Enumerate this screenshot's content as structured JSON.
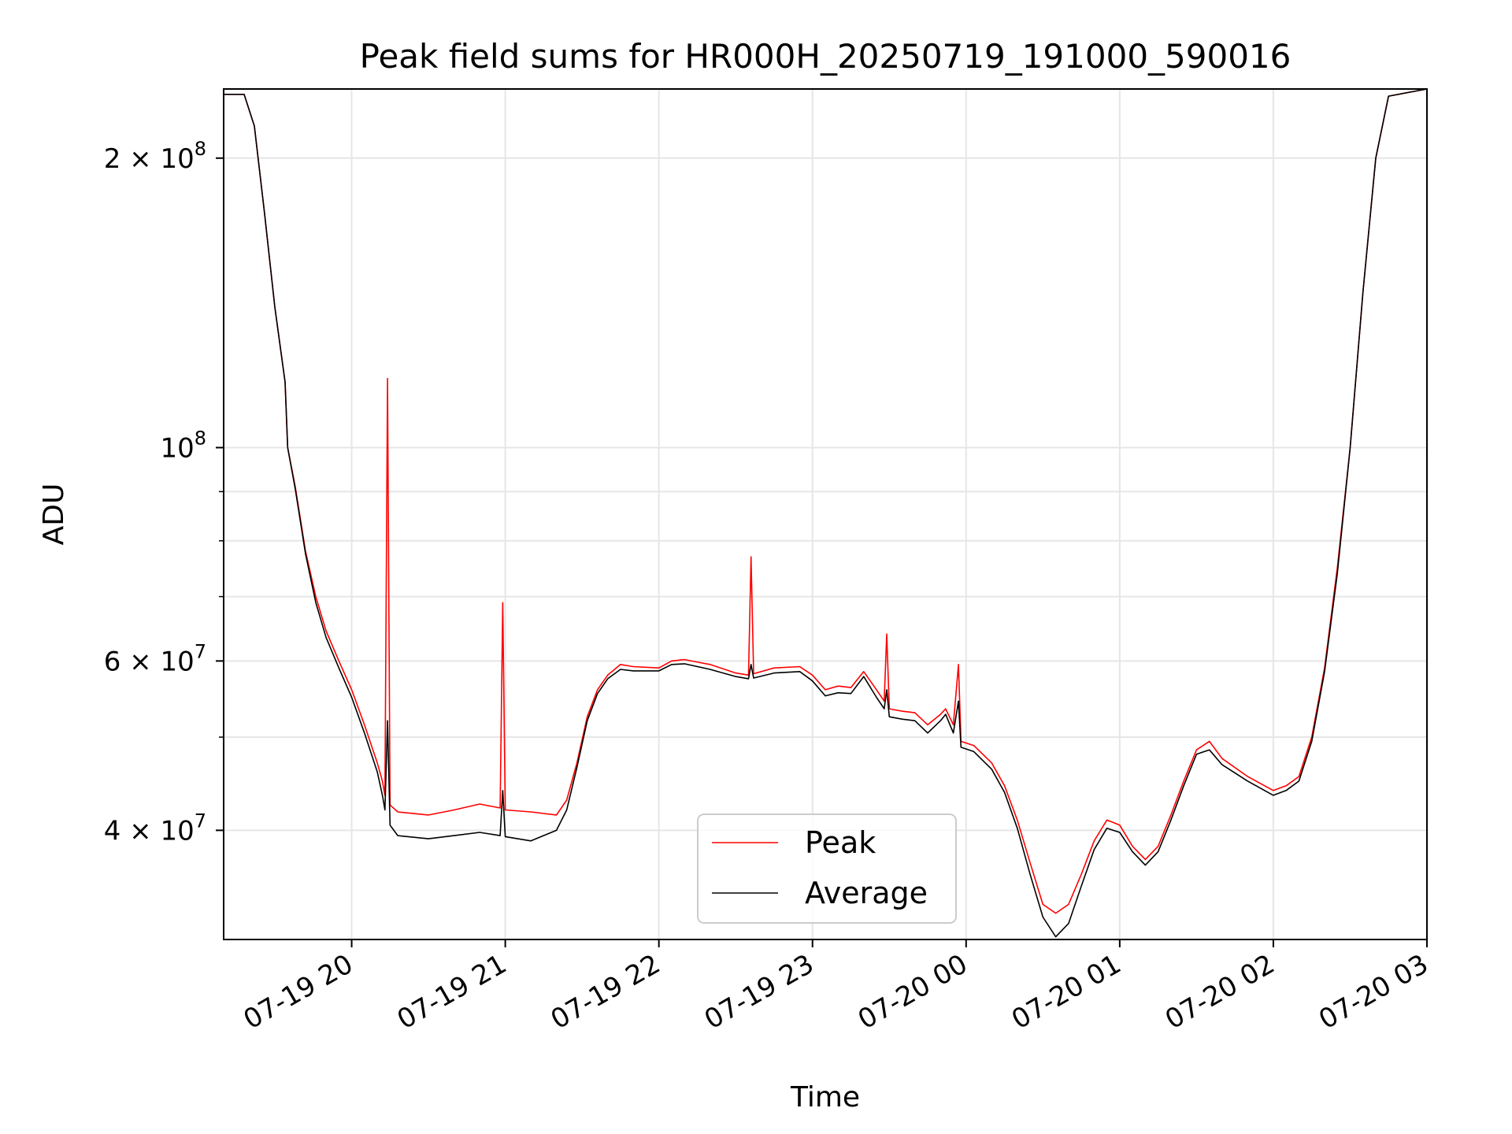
{
  "chart_data": {
    "type": "line",
    "title": "Peak field sums for HR000H_20250719_191000_590016",
    "xlabel": "Time",
    "ylabel": "ADU",
    "yscale": "log",
    "grid": true,
    "legend_position": "lower center",
    "x_range": [
      "2025-07-19 19:10",
      "2025-07-20 03:00"
    ],
    "y_range": [
      30800000,
      236000000
    ],
    "x_ticks": [
      {
        "t": "2025-07-19 20:00",
        "label": "07-19 20"
      },
      {
        "t": "2025-07-19 21:00",
        "label": "07-19 21"
      },
      {
        "t": "2025-07-19 22:00",
        "label": "07-19 22"
      },
      {
        "t": "2025-07-19 23:00",
        "label": "07-19 23"
      },
      {
        "t": "2025-07-20 00:00",
        "label": "07-20 00"
      },
      {
        "t": "2025-07-20 01:00",
        "label": "07-20 01"
      },
      {
        "t": "2025-07-20 02:00",
        "label": "07-20 02"
      },
      {
        "t": "2025-07-20 03:00",
        "label": "07-20 03"
      }
    ],
    "y_ticks": [
      {
        "v": 40000000,
        "mant": "4",
        "exp": "7",
        "sci": true
      },
      {
        "v": 60000000,
        "mant": "6",
        "exp": "7",
        "sci": true
      },
      {
        "v": 100000000,
        "mant": "10",
        "exp": "8",
        "sci": false
      },
      {
        "v": 200000000,
        "mant": "2",
        "exp": "8",
        "sci": true
      }
    ],
    "y_minor_ticks": [
      30000000,
      50000000,
      70000000,
      80000000,
      90000000
    ],
    "series": [
      {
        "name": "Peak",
        "color": "#ff0000",
        "points": [
          [
            "2025-07-19 19:10",
            233000000
          ],
          [
            "2025-07-19 19:18",
            233000000
          ],
          [
            "2025-07-19 19:22",
            216000000
          ],
          [
            "2025-07-19 19:26",
            175000000
          ],
          [
            "2025-07-19 19:30",
            140000000
          ],
          [
            "2025-07-19 19:34",
            117000000
          ],
          [
            "2025-07-19 19:35",
            100000000
          ],
          [
            "2025-07-19 19:38",
            91000000
          ],
          [
            "2025-07-19 19:42",
            78000000
          ],
          [
            "2025-07-19 19:46",
            70000000
          ],
          [
            "2025-07-19 19:50",
            64500000
          ],
          [
            "2025-07-19 19:55",
            60000000
          ],
          [
            "2025-07-19 20:00",
            56000000
          ],
          [
            "2025-07-19 20:05",
            51500000
          ],
          [
            "2025-07-19 20:10",
            47000000
          ],
          [
            "2025-07-19 20:12",
            45000000
          ],
          [
            "2025-07-19 20:13",
            43500000
          ],
          [
            "2025-07-19 20:14",
            118000000
          ],
          [
            "2025-07-19 20:15",
            42500000
          ],
          [
            "2025-07-19 20:18",
            41800000
          ],
          [
            "2025-07-19 20:30",
            41500000
          ],
          [
            "2025-07-19 20:40",
            42000000
          ],
          [
            "2025-07-19 20:50",
            42600000
          ],
          [
            "2025-07-19 20:58",
            42200000
          ],
          [
            "2025-07-19 20:59",
            69000000
          ],
          [
            "2025-07-19 21:00",
            42000000
          ],
          [
            "2025-07-19 21:10",
            41800000
          ],
          [
            "2025-07-19 21:20",
            41500000
          ],
          [
            "2025-07-19 21:24",
            43000000
          ],
          [
            "2025-07-19 21:28",
            47000000
          ],
          [
            "2025-07-19 21:32",
            52500000
          ],
          [
            "2025-07-19 21:36",
            56000000
          ],
          [
            "2025-07-19 21:40",
            58000000
          ],
          [
            "2025-07-19 21:45",
            59500000
          ],
          [
            "2025-07-19 21:50",
            59200000
          ],
          [
            "2025-07-19 22:00",
            59000000
          ],
          [
            "2025-07-19 22:05",
            60000000
          ],
          [
            "2025-07-19 22:10",
            60200000
          ],
          [
            "2025-07-19 22:20",
            59500000
          ],
          [
            "2025-07-19 22:30",
            58300000
          ],
          [
            "2025-07-19 22:35",
            58000000
          ],
          [
            "2025-07-19 22:36",
            77000000
          ],
          [
            "2025-07-19 22:37",
            58200000
          ],
          [
            "2025-07-19 22:45",
            59000000
          ],
          [
            "2025-07-19 22:55",
            59200000
          ],
          [
            "2025-07-19 23:00",
            58000000
          ],
          [
            "2025-07-19 23:05",
            56000000
          ],
          [
            "2025-07-19 23:10",
            56500000
          ],
          [
            "2025-07-19 23:15",
            56300000
          ],
          [
            "2025-07-19 23:20",
            58500000
          ],
          [
            "2025-07-19 23:25",
            56000000
          ],
          [
            "2025-07-19 23:28",
            54500000
          ],
          [
            "2025-07-19 23:29",
            64000000
          ],
          [
            "2025-07-19 23:30",
            53500000
          ],
          [
            "2025-07-19 23:35",
            53200000
          ],
          [
            "2025-07-19 23:40",
            53000000
          ],
          [
            "2025-07-19 23:45",
            51500000
          ],
          [
            "2025-07-19 23:50",
            52800000
          ],
          [
            "2025-07-19 23:52",
            53500000
          ],
          [
            "2025-07-19 23:55",
            51500000
          ],
          [
            "2025-07-19 23:57",
            59500000
          ],
          [
            "2025-07-19 23:58",
            49500000
          ],
          [
            "2025-07-20 00:03",
            49000000
          ],
          [
            "2025-07-20 00:10",
            47000000
          ],
          [
            "2025-07-20 00:15",
            44500000
          ],
          [
            "2025-07-20 00:20",
            41000000
          ],
          [
            "2025-07-20 00:25",
            37000000
          ],
          [
            "2025-07-20 00:30",
            33500000
          ],
          [
            "2025-07-20 00:35",
            32800000
          ],
          [
            "2025-07-20 00:40",
            33500000
          ],
          [
            "2025-07-20 00:45",
            36000000
          ],
          [
            "2025-07-20 00:50",
            39000000
          ],
          [
            "2025-07-20 00:55",
            41000000
          ],
          [
            "2025-07-20 01:00",
            40500000
          ],
          [
            "2025-07-20 01:05",
            38500000
          ],
          [
            "2025-07-20 01:10",
            37300000
          ],
          [
            "2025-07-20 01:15",
            38500000
          ],
          [
            "2025-07-20 01:20",
            41500000
          ],
          [
            "2025-07-20 01:25",
            45000000
          ],
          [
            "2025-07-20 01:30",
            48500000
          ],
          [
            "2025-07-20 01:35",
            49500000
          ],
          [
            "2025-07-20 01:40",
            47500000
          ],
          [
            "2025-07-20 01:50",
            45500000
          ],
          [
            "2025-07-20 02:00",
            44000000
          ],
          [
            "2025-07-20 02:05",
            44500000
          ],
          [
            "2025-07-20 02:10",
            45500000
          ],
          [
            "2025-07-20 02:15",
            50000000
          ],
          [
            "2025-07-20 02:20",
            59000000
          ],
          [
            "2025-07-20 02:25",
            75000000
          ],
          [
            "2025-07-20 02:30",
            100000000
          ],
          [
            "2025-07-20 02:35",
            145000000
          ],
          [
            "2025-07-20 02:40",
            200000000
          ],
          [
            "2025-07-20 02:45",
            232000000
          ],
          [
            "2025-07-20 03:00",
            236000000
          ]
        ]
      },
      {
        "name": "Average",
        "color": "#000000",
        "points": [
          [
            "2025-07-19 19:10",
            233000000
          ],
          [
            "2025-07-19 19:18",
            233000000
          ],
          [
            "2025-07-19 19:22",
            216000000
          ],
          [
            "2025-07-19 19:26",
            175000000
          ],
          [
            "2025-07-19 19:30",
            140000000
          ],
          [
            "2025-07-19 19:34",
            117000000
          ],
          [
            "2025-07-19 19:35",
            100000000
          ],
          [
            "2025-07-19 19:38",
            90500000
          ],
          [
            "2025-07-19 19:42",
            77500000
          ],
          [
            "2025-07-19 19:46",
            69000000
          ],
          [
            "2025-07-19 19:50",
            63500000
          ],
          [
            "2025-07-19 19:55",
            59000000
          ],
          [
            "2025-07-19 20:00",
            55000000
          ],
          [
            "2025-07-19 20:05",
            50500000
          ],
          [
            "2025-07-19 20:10",
            46000000
          ],
          [
            "2025-07-19 20:12",
            43500000
          ],
          [
            "2025-07-19 20:13",
            42000000
          ],
          [
            "2025-07-19 20:14",
            52000000
          ],
          [
            "2025-07-19 20:15",
            40500000
          ],
          [
            "2025-07-19 20:18",
            39500000
          ],
          [
            "2025-07-19 20:30",
            39200000
          ],
          [
            "2025-07-19 20:40",
            39500000
          ],
          [
            "2025-07-19 20:50",
            39800000
          ],
          [
            "2025-07-19 20:58",
            39500000
          ],
          [
            "2025-07-19 20:59",
            44000000
          ],
          [
            "2025-07-19 21:00",
            39400000
          ],
          [
            "2025-07-19 21:10",
            39000000
          ],
          [
            "2025-07-19 21:20",
            40000000
          ],
          [
            "2025-07-19 21:24",
            42000000
          ],
          [
            "2025-07-19 21:28",
            46500000
          ],
          [
            "2025-07-19 21:32",
            52000000
          ],
          [
            "2025-07-19 21:36",
            55500000
          ],
          [
            "2025-07-19 21:40",
            57500000
          ],
          [
            "2025-07-19 21:45",
            58800000
          ],
          [
            "2025-07-19 21:50",
            58600000
          ],
          [
            "2025-07-19 22:00",
            58600000
          ],
          [
            "2025-07-19 22:05",
            59500000
          ],
          [
            "2025-07-19 22:10",
            59600000
          ],
          [
            "2025-07-19 22:20",
            58800000
          ],
          [
            "2025-07-19 22:30",
            57800000
          ],
          [
            "2025-07-19 22:35",
            57500000
          ],
          [
            "2025-07-19 22:36",
            59500000
          ],
          [
            "2025-07-19 22:37",
            57600000
          ],
          [
            "2025-07-19 22:45",
            58300000
          ],
          [
            "2025-07-19 22:55",
            58500000
          ],
          [
            "2025-07-19 23:00",
            57200000
          ],
          [
            "2025-07-19 23:05",
            55200000
          ],
          [
            "2025-07-19 23:10",
            55600000
          ],
          [
            "2025-07-19 23:15",
            55500000
          ],
          [
            "2025-07-19 23:20",
            57800000
          ],
          [
            "2025-07-19 23:25",
            55000000
          ],
          [
            "2025-07-19 23:28",
            53500000
          ],
          [
            "2025-07-19 23:29",
            56000000
          ],
          [
            "2025-07-19 23:30",
            52500000
          ],
          [
            "2025-07-19 23:35",
            52200000
          ],
          [
            "2025-07-19 23:40",
            52000000
          ],
          [
            "2025-07-19 23:45",
            50500000
          ],
          [
            "2025-07-19 23:50",
            52000000
          ],
          [
            "2025-07-19 23:52",
            52800000
          ],
          [
            "2025-07-19 23:55",
            50500000
          ],
          [
            "2025-07-19 23:57",
            54500000
          ],
          [
            "2025-07-19 23:58",
            48800000
          ],
          [
            "2025-07-20 00:03",
            48300000
          ],
          [
            "2025-07-20 00:10",
            46300000
          ],
          [
            "2025-07-20 00:15",
            43800000
          ],
          [
            "2025-07-20 00:20",
            40200000
          ],
          [
            "2025-07-20 00:25",
            36000000
          ],
          [
            "2025-07-20 00:30",
            32500000
          ],
          [
            "2025-07-20 00:35",
            31000000
          ],
          [
            "2025-07-20 00:40",
            32000000
          ],
          [
            "2025-07-20 00:45",
            35000000
          ],
          [
            "2025-07-20 00:50",
            38200000
          ],
          [
            "2025-07-20 00:55",
            40200000
          ],
          [
            "2025-07-20 01:00",
            39800000
          ],
          [
            "2025-07-20 01:05",
            38000000
          ],
          [
            "2025-07-20 01:10",
            36800000
          ],
          [
            "2025-07-20 01:15",
            38000000
          ],
          [
            "2025-07-20 01:20",
            41000000
          ],
          [
            "2025-07-20 01:25",
            44500000
          ],
          [
            "2025-07-20 01:30",
            48000000
          ],
          [
            "2025-07-20 01:35",
            48500000
          ],
          [
            "2025-07-20 01:40",
            46800000
          ],
          [
            "2025-07-20 01:50",
            45000000
          ],
          [
            "2025-07-20 02:00",
            43500000
          ],
          [
            "2025-07-20 02:05",
            44000000
          ],
          [
            "2025-07-20 02:10",
            45000000
          ],
          [
            "2025-07-20 02:15",
            49500000
          ],
          [
            "2025-07-20 02:20",
            58500000
          ],
          [
            "2025-07-20 02:25",
            74000000
          ],
          [
            "2025-07-20 02:30",
            100000000
          ],
          [
            "2025-07-20 02:35",
            145000000
          ],
          [
            "2025-07-20 02:40",
            200000000
          ],
          [
            "2025-07-20 02:45",
            232000000
          ],
          [
            "2025-07-20 03:00",
            236000000
          ]
        ]
      }
    ]
  }
}
